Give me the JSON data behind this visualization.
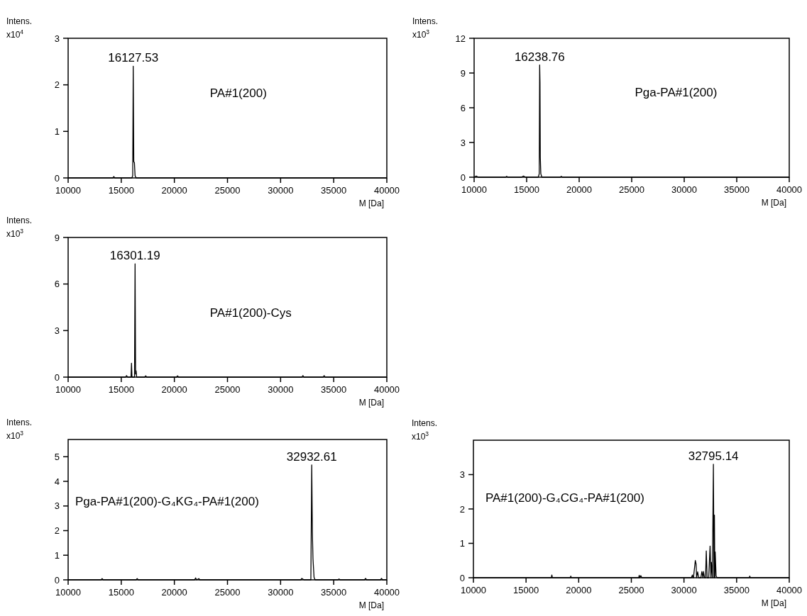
{
  "chart_data": [
    {
      "type": "line",
      "ylabel": "Intens. x10$^{4}$",
      "xlabel": "M [Da]",
      "xlim": [
        10000,
        40000
      ],
      "xticks": [
        10000,
        15000,
        20000,
        25000,
        30000,
        35000,
        40000
      ],
      "ylim": [
        0,
        3
      ],
      "yticks": [
        0,
        1,
        2,
        3
      ],
      "series": [
        {
          "color": "#000000",
          "x": [
            10000,
            14200,
            14300,
            14400,
            16000,
            16080,
            16127.53,
            16180,
            16240,
            16300,
            16400,
            40000
          ],
          "values": [
            0,
            0,
            0.03,
            0,
            0,
            0.05,
            2.4,
            0.35,
            0.33,
            0.05,
            0,
            0
          ]
        }
      ],
      "annotations": [
        {
          "text": "16127.53",
          "x": 16127.53,
          "y": 2.4
        },
        "PA#1(200)"
      ]
    },
    {
      "type": "line",
      "ylabel": "Intens. x10$^{3}$",
      "xlabel": "M [Da]",
      "xlim": [
        10000,
        40000
      ],
      "xticks": [
        10000,
        15000,
        20000,
        25000,
        30000,
        35000,
        40000
      ],
      "ylim": [
        0,
        12
      ],
      "yticks": [
        0,
        3,
        6,
        9,
        12
      ],
      "series": [
        {
          "color": "#000000",
          "x": [
            10000,
            10200,
            10400,
            13000,
            13100,
            13200,
            14500,
            14700,
            14900,
            16100,
            16200,
            16238.76,
            16270,
            16300,
            16350,
            16450,
            18200,
            18300,
            18400,
            40000
          ],
          "values": [
            0,
            0.1,
            0,
            0,
            0.08,
            0,
            0,
            0.1,
            0,
            0,
            0.3,
            9.7,
            8.2,
            1.7,
            0.3,
            0,
            0,
            0.08,
            0,
            0
          ]
        }
      ],
      "annotations": [
        {
          "text": "16238.76",
          "x": 16238.76,
          "y": 9.7
        },
        "Pga-PA#1(200)"
      ]
    },
    {
      "type": "line",
      "ylabel": "Intens. x10$^{3}$",
      "xlabel": "M [Da]",
      "xlim": [
        10000,
        40000
      ],
      "xticks": [
        10000,
        15000,
        20000,
        25000,
        30000,
        35000,
        40000
      ],
      "ylim": [
        0,
        9
      ],
      "yticks": [
        0,
        3,
        6,
        9
      ],
      "series": [
        {
          "color": "#000000",
          "x": [
            10000,
            15400,
            15500,
            15600,
            15920,
            15966,
            16010,
            16250,
            16301.19,
            16350,
            16400,
            16450,
            16600,
            17200,
            17300,
            17400,
            20200,
            20300,
            20400,
            32000,
            32100,
            32200,
            34000,
            34100,
            34200,
            40000
          ],
          "values": [
            0,
            0,
            0.1,
            0,
            0,
            0.9,
            0,
            0,
            7.3,
            0.2,
            0.4,
            0,
            0,
            0,
            0.08,
            0,
            0,
            0.08,
            0,
            0,
            0.1,
            0,
            0,
            0.1,
            0,
            0
          ]
        }
      ],
      "annotations": [
        {
          "text": "16301.19",
          "x": 16301.19,
          "y": 7.3
        },
        "PA#1(200)-Cys"
      ]
    },
    {
      "type": "line",
      "ylabel": "Intens. x10$^{3}$",
      "xlabel": "M [Da]",
      "xlim": [
        10000,
        40000
      ],
      "xticks": [
        10000,
        15000,
        20000,
        25000,
        30000,
        35000,
        40000
      ],
      "ylim": [
        0,
        5.7
      ],
      "yticks": [
        0,
        1,
        2,
        3,
        4,
        5
      ],
      "series": [
        {
          "color": "#000000",
          "x": [
            10000,
            13100,
            13200,
            13300,
            16400,
            16500,
            16600,
            21900,
            22000,
            22100,
            22300,
            22400,
            31900,
            32000,
            32200,
            32850,
            32932.61,
            32990,
            33050,
            33150,
            33250,
            35400,
            35500,
            35600,
            37900,
            38000,
            38100,
            39400,
            39500,
            39600,
            40000
          ],
          "values": [
            0,
            0,
            0.05,
            0,
            0,
            0.05,
            0,
            0,
            0.08,
            0,
            0.05,
            0,
            0,
            0.06,
            0,
            0,
            4.67,
            1.95,
            0.85,
            0.1,
            0,
            0,
            0.04,
            0,
            0,
            0.06,
            0,
            0,
            0.06,
            0,
            0
          ]
        }
      ],
      "annotations": [
        {
          "text": "32932.61",
          "x": 32932.61,
          "y": 4.67
        },
        "Pga-PA#1(200)-G₄KG₄-PA#1(200)"
      ]
    },
    {
      "type": "line",
      "ylabel": "Intens. x10$^{3}$",
      "xlabel": "M [Da]",
      "xlim": [
        10000,
        40000
      ],
      "xticks": [
        10000,
        15000,
        20000,
        25000,
        30000,
        35000,
        40000
      ],
      "ylim": [
        0,
        4
      ],
      "yticks": [
        0,
        1,
        2,
        3
      ],
      "series": [
        {
          "color": "#000000",
          "x": [
            10000,
            17400,
            17450,
            17500,
            19200,
            19250,
            19300,
            25700,
            25750,
            25800,
            25900,
            26000,
            30700,
            30800,
            30850,
            30900,
            31077,
            31150,
            31200,
            31300,
            31400,
            31600,
            31700,
            31800,
            31851,
            31950,
            32050,
            32118,
            32200,
            32350,
            32480,
            32560,
            32601,
            32700,
            32795.14,
            32850,
            32892,
            32930,
            32965,
            33050,
            33150,
            36200,
            36250,
            36300,
            40000
          ],
          "values": [
            0,
            0,
            0.08,
            0,
            0,
            0.05,
            0,
            0,
            0.07,
            0,
            0.06,
            0,
            0,
            0.08,
            0,
            0,
            0.5,
            0.4,
            0,
            0.17,
            0,
            0,
            0.18,
            0,
            0.18,
            0,
            0,
            0.78,
            0,
            0,
            0.92,
            0,
            0.45,
            0,
            3.3,
            0,
            1.82,
            0,
            0.75,
            0.05,
            0,
            0,
            0.05,
            0,
            0
          ]
        }
      ],
      "annotations": [
        {
          "text": "32795.14",
          "x": 32795.14,
          "y": 3.3
        },
        "PA#1(200)-G₄CG₄-PA#1(200)"
      ]
    }
  ]
}
